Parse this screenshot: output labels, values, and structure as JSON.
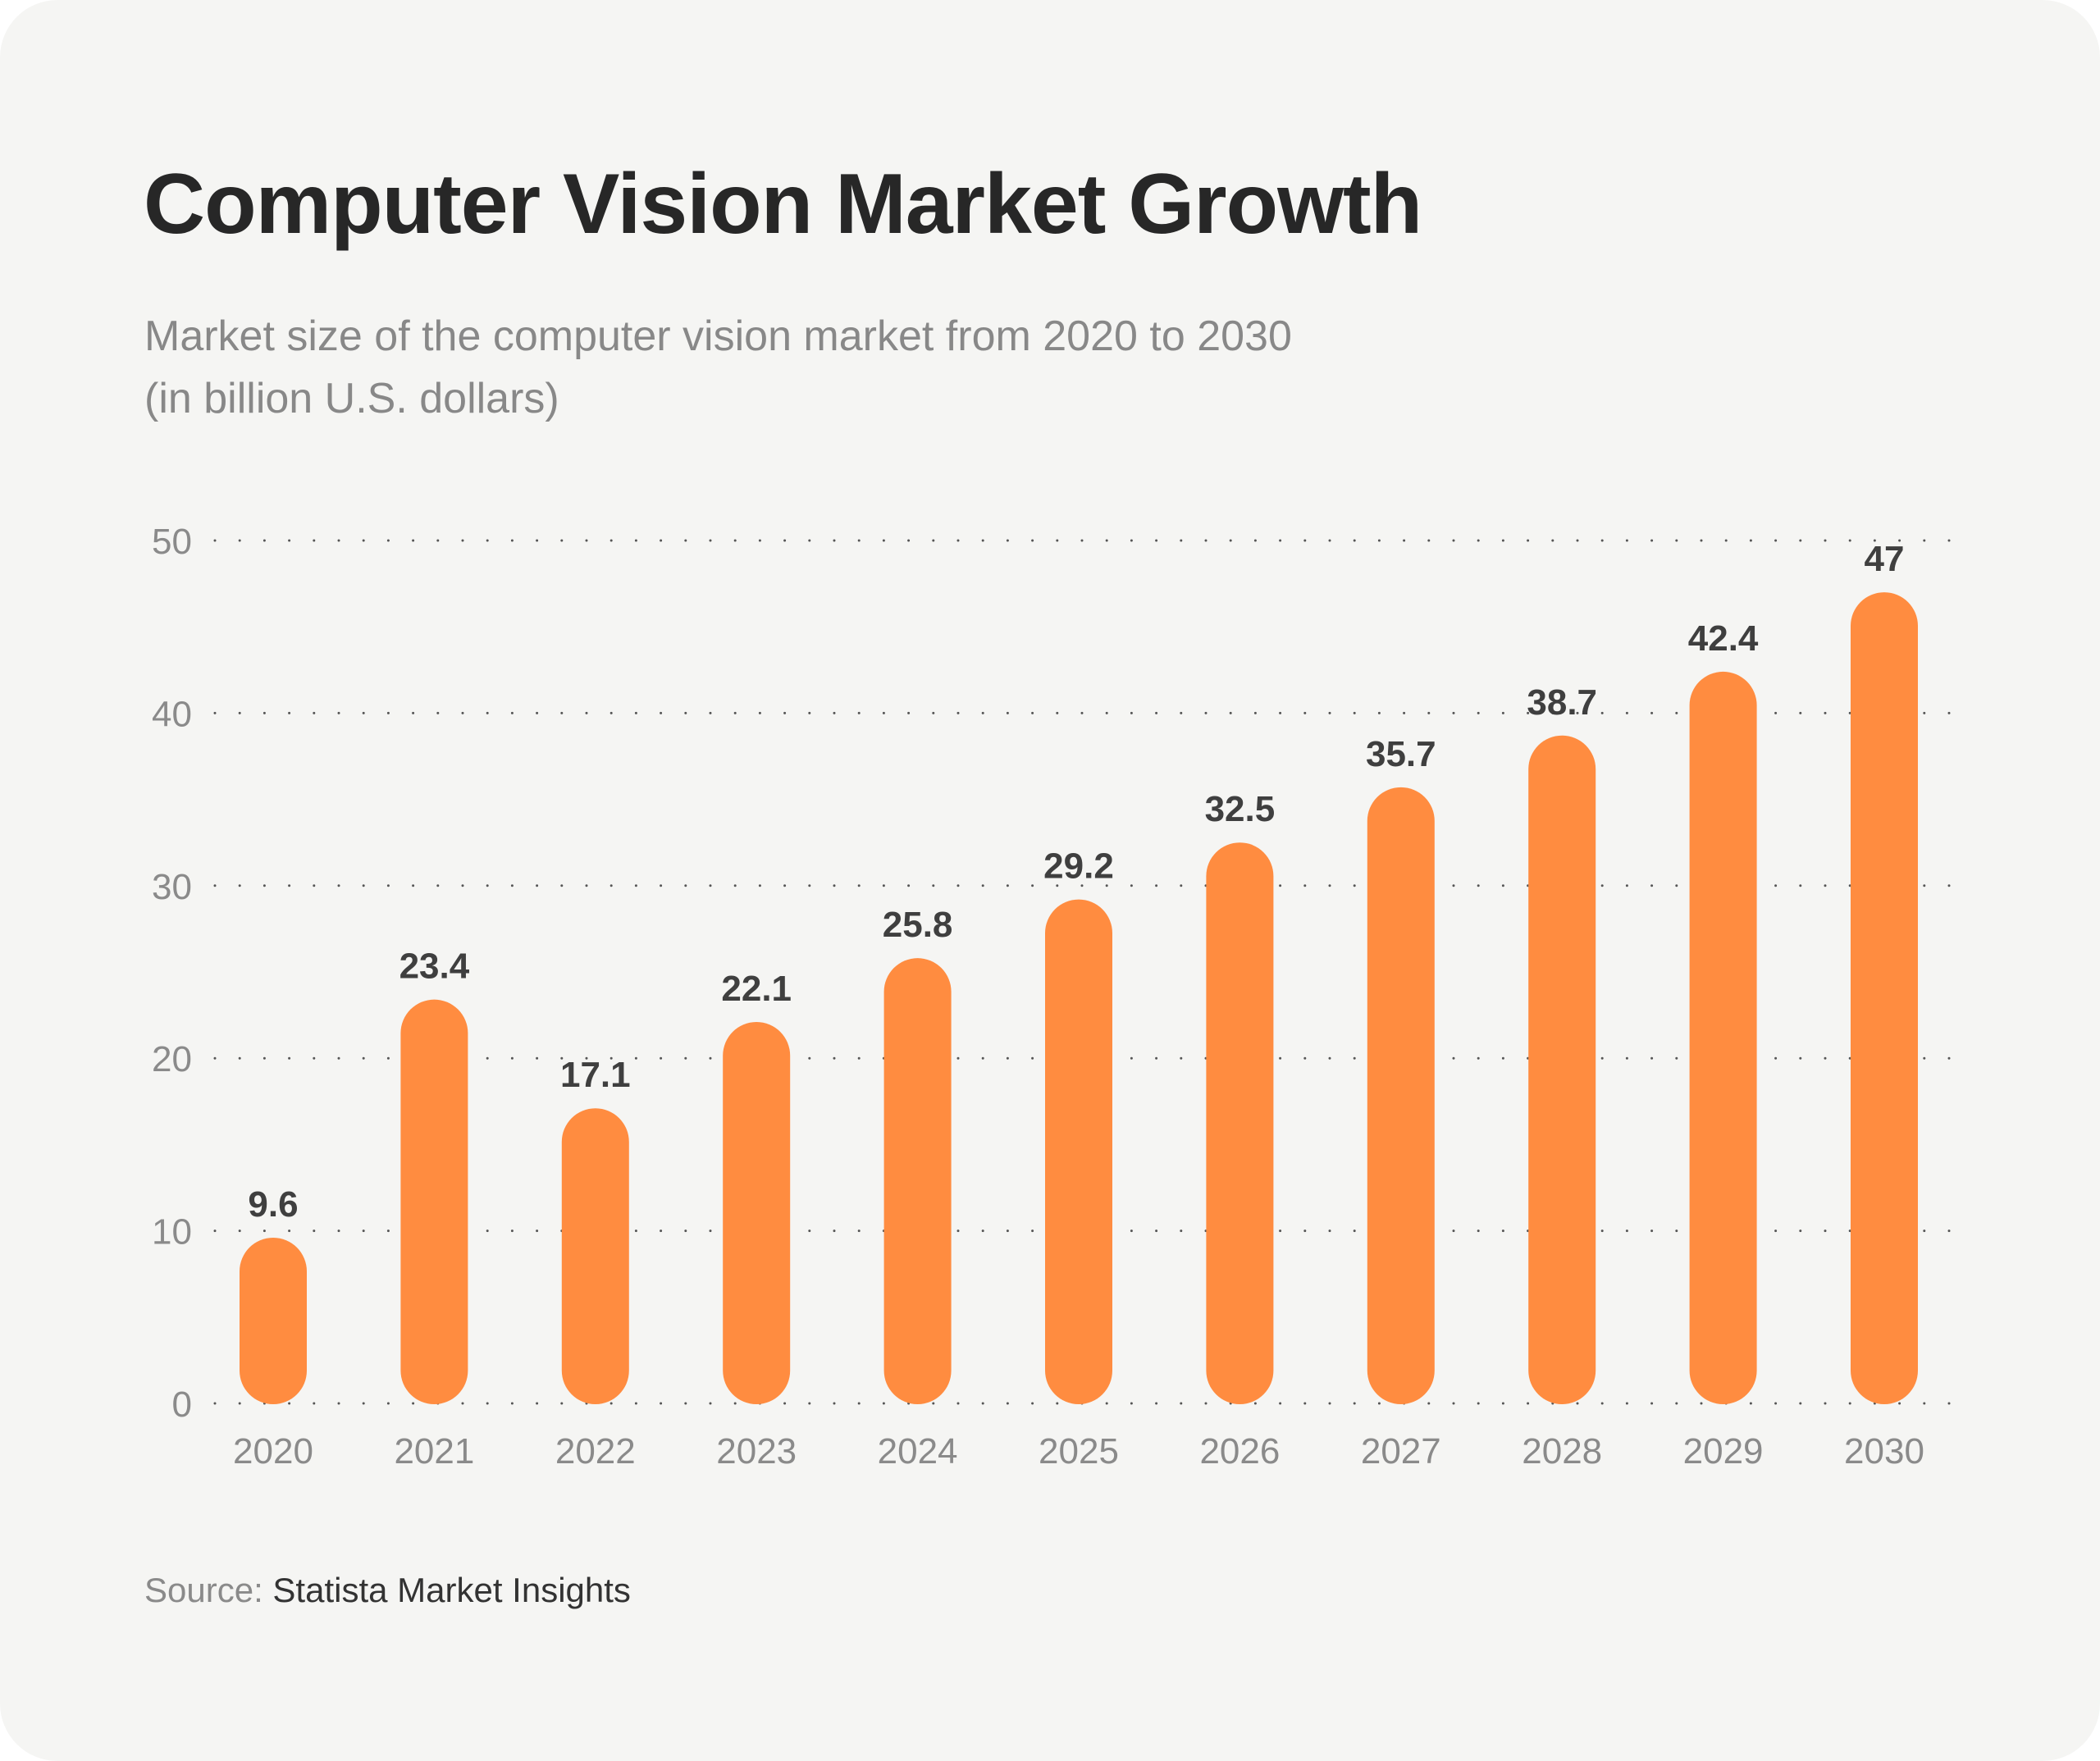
{
  "header": {
    "title": "Computer Vision Market Growth",
    "subtitle_line1": "Market size of the computer vision market from 2020 to 2030",
    "subtitle_line2": "(in billion U.S. dollars)"
  },
  "footer": {
    "source_label": "Source:",
    "source_value": "Statista Market Insights"
  },
  "colors": {
    "bar": "#ff8c40",
    "grid_dot": "#555555",
    "background": "#f5f5f3"
  },
  "chart_data": {
    "type": "bar",
    "title": "Computer Vision Market Growth",
    "subtitle": "Market size of the computer vision market from 2020 to 2030 (in billion U.S. dollars)",
    "xlabel": "",
    "ylabel": "",
    "categories": [
      "2020",
      "2021",
      "2022",
      "2023",
      "2024",
      "2025",
      "2026",
      "2027",
      "2028",
      "2029",
      "2030"
    ],
    "values": [
      9.6,
      23.4,
      17.1,
      22.1,
      25.8,
      29.2,
      32.5,
      35.7,
      38.7,
      42.4,
      47
    ],
    "data_labels": [
      "9.6",
      "23.4",
      "17.1",
      "22.1",
      "25.8",
      "29.2",
      "32.5",
      "35.7",
      "38.7",
      "42.4",
      "47"
    ],
    "ylim": [
      0,
      50
    ],
    "yticks": [
      0,
      10,
      20,
      30,
      40,
      50
    ],
    "grid": true,
    "grid_style": "dotted",
    "legend": "none",
    "source": "Statista Market Insights"
  }
}
